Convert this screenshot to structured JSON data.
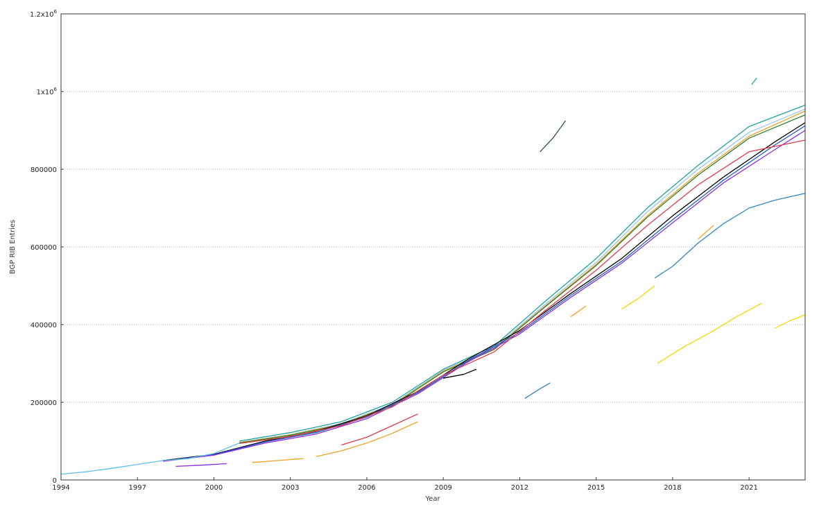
{
  "chart_data": {
    "type": "line",
    "title": "",
    "xlabel": "Year",
    "ylabel": "BGP RIB Entries",
    "xlim": [
      1994,
      2023.2
    ],
    "ylim": [
      0,
      1200000
    ],
    "grid": true,
    "x_ticks": [
      {
        "value": 1994,
        "label": "1994"
      },
      {
        "value": 1997,
        "label": "1997"
      },
      {
        "value": 2000,
        "label": "2000"
      },
      {
        "value": 2003,
        "label": "2003"
      },
      {
        "value": 2006,
        "label": "2006"
      },
      {
        "value": 2009,
        "label": "2009"
      },
      {
        "value": 2012,
        "label": "2012"
      },
      {
        "value": 2015,
        "label": "2015"
      },
      {
        "value": 2018,
        "label": "2018"
      },
      {
        "value": 2021,
        "label": "2021"
      }
    ],
    "y_ticks": [
      {
        "value": 0,
        "label": "0"
      },
      {
        "value": 200000,
        "label": "200000"
      },
      {
        "value": 400000,
        "label": "400000"
      },
      {
        "value": 600000,
        "label": "600000"
      },
      {
        "value": 800000,
        "label": "800000"
      },
      {
        "value": 1000000,
        "label": "1x10^6"
      },
      {
        "value": 1200000,
        "label": "1.2x10^6"
      }
    ],
    "series": [
      {
        "color": "#1ba3a0",
        "x": [
          2001,
          2003,
          2005,
          2007,
          2009,
          2011,
          2013,
          2015,
          2017,
          2019,
          2021,
          2023.2
        ],
        "y": [
          100000,
          122000,
          150000,
          200000,
          285000,
          345000,
          460000,
          570000,
          700000,
          810000,
          910000,
          965000
        ]
      },
      {
        "color": "#9ac6e8",
        "x": [
          2001,
          2003,
          2005,
          2007,
          2009,
          2011,
          2013,
          2015,
          2017,
          2019,
          2021,
          2023.2
        ],
        "y": [
          97000,
          117000,
          145000,
          195000,
          282000,
          340000,
          452000,
          560000,
          690000,
          800000,
          895000,
          955000
        ]
      },
      {
        "color": "#f0a020",
        "x": [
          2001,
          2003,
          2005,
          2007,
          2009,
          2011,
          2013,
          2015,
          2017,
          2019,
          2021,
          2023.2
        ],
        "y": [
          96000,
          116000,
          143000,
          193000,
          280000,
          338000,
          448000,
          555000,
          680000,
          790000,
          885000,
          950000
        ]
      },
      {
        "color": "#2e7d32",
        "x": [
          2001,
          2003,
          2005,
          2007,
          2009,
          2011,
          2013,
          2015,
          2017,
          2019,
          2021,
          2023.2
        ],
        "y": [
          95000,
          115000,
          142000,
          192000,
          278000,
          336000,
          446000,
          552000,
          676000,
          785000,
          880000,
          940000
        ]
      },
      {
        "color": "#000000",
        "x": [
          1998,
          2000,
          2002,
          2004,
          2006,
          2008,
          2010,
          2012,
          2014,
          2016,
          2018,
          2020,
          2022,
          2023.2
        ],
        "y": [
          50000,
          66000,
          100000,
          125000,
          165000,
          228000,
          312000,
          385000,
          480000,
          570000,
          680000,
          780000,
          870000,
          920000
        ]
      },
      {
        "color": "#1f5fc4",
        "x": [
          1998,
          2000,
          2002,
          2004,
          2006,
          2008,
          2010,
          2012,
          2014,
          2016,
          2018,
          2020,
          2022,
          2023.2
        ],
        "y": [
          49000,
          65000,
          98000,
          122000,
          162000,
          225000,
          308000,
          380000,
          475000,
          563000,
          670000,
          772000,
          862000,
          912000
        ]
      },
      {
        "color": "#8a2be2",
        "x": [
          1998,
          2000,
          2002,
          2004,
          2006,
          2008,
          2010,
          2012,
          2014,
          2016,
          2018,
          2020,
          2022,
          2023.2
        ],
        "y": [
          48000,
          64000,
          95000,
          118000,
          158000,
          222000,
          305000,
          376000,
          470000,
          558000,
          662000,
          765000,
          850000,
          900000
        ]
      },
      {
        "color": "#e23a4a",
        "x": [
          2001,
          2003,
          2005,
          2007,
          2009,
          2011,
          2013,
          2015,
          2017,
          2019,
          2021,
          2023.2
        ],
        "y": [
          94000,
          112000,
          140000,
          188000,
          270000,
          330000,
          436000,
          540000,
          655000,
          760000,
          845000,
          875000
        ]
      },
      {
        "color": "#5bc0e8",
        "x": [
          1994,
          1995,
          1996,
          1997,
          1998,
          1999,
          2000,
          2001
        ],
        "y": [
          15000,
          21000,
          30000,
          40000,
          50000,
          55000,
          68000,
          95000
        ]
      },
      {
        "color": "#2e86c1",
        "x": [
          2017.3,
          2018,
          2019,
          2020,
          2021,
          2022,
          2023.2
        ],
        "y": [
          520000,
          550000,
          610000,
          660000,
          700000,
          720000,
          738000
        ]
      },
      {
        "color": "#f0a020",
        "x": [
          2004,
          2005,
          2006,
          2007,
          2008
        ],
        "y": [
          60000,
          75000,
          95000,
          120000,
          150000
        ]
      },
      {
        "color": "#f5d800",
        "x": [
          2016,
          2016.6,
          2017.3
        ],
        "y": [
          440000,
          465000,
          500000
        ]
      },
      {
        "color": "#f5d800",
        "x": [
          2017.4,
          2018.5,
          2019.5,
          2020.5,
          2021.5
        ],
        "y": [
          300000,
          345000,
          380000,
          420000,
          455000
        ]
      },
      {
        "color": "#f5d800",
        "x": [
          2022,
          2022.6,
          2023.2
        ],
        "y": [
          390000,
          410000,
          425000
        ]
      },
      {
        "color": "#2e86c1",
        "x": [
          2012.2,
          2012.8,
          2013.2
        ],
        "y": [
          210000,
          235000,
          250000
        ]
      },
      {
        "color": "#2f4f4f",
        "x": [
          2012.8,
          2013.3,
          2013.8
        ],
        "y": [
          845000,
          880000,
          925000
        ]
      },
      {
        "color": "#1ba3a0",
        "x": [
          2021.1,
          2021.3
        ],
        "y": [
          1018000,
          1035000
        ]
      },
      {
        "color": "#e23a4a",
        "x": [
          2005,
          2006,
          2007,
          2008
        ],
        "y": [
          90000,
          110000,
          140000,
          170000
        ]
      },
      {
        "color": "#000000",
        "x": [
          2009,
          2009.8,
          2010.3
        ],
        "y": [
          262000,
          272000,
          285000
        ]
      },
      {
        "color": "#f0a020",
        "x": [
          2001.5,
          2002.5,
          2003.5
        ],
        "y": [
          45000,
          50000,
          55000
        ]
      },
      {
        "color": "#8a2be2",
        "x": [
          1998.5,
          1999.5,
          2000.5
        ],
        "y": [
          35000,
          38000,
          42000
        ]
      },
      {
        "color": "#f0a020",
        "x": [
          2014,
          2014.6
        ],
        "y": [
          420000,
          448000
        ]
      },
      {
        "color": "#f0a020",
        "x": [
          2019,
          2019.6
        ],
        "y": [
          620000,
          655000
        ]
      }
    ]
  }
}
